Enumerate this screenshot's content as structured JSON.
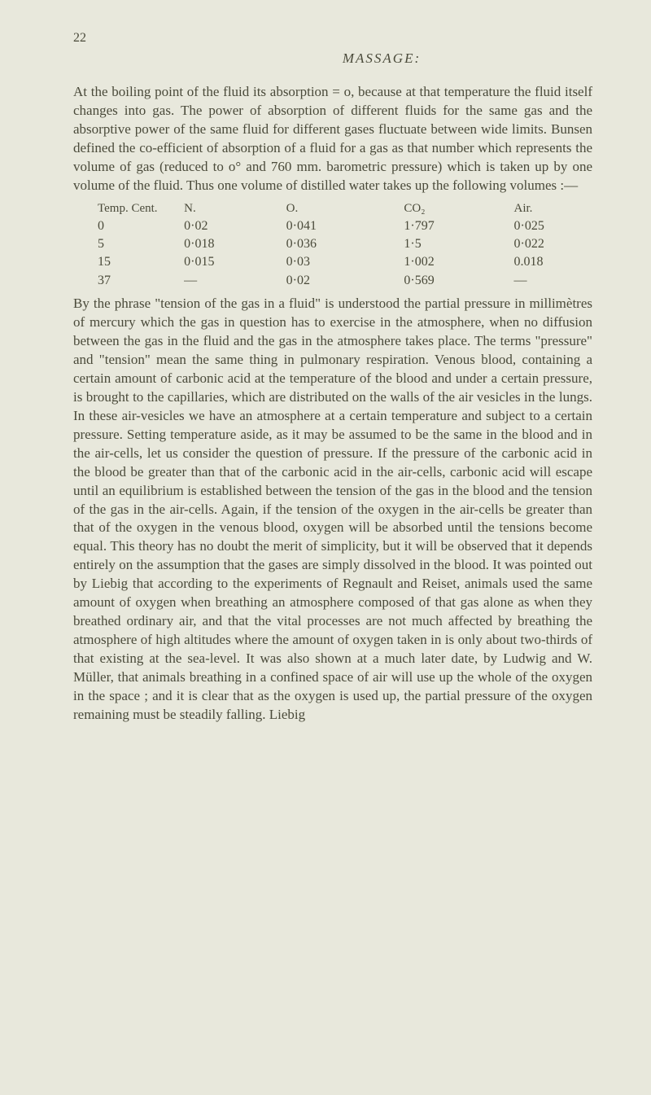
{
  "page_number": "22",
  "chapter_title": "MASSAGE:",
  "para1": "At the boiling point of the fluid its absorption = o, because at that temperature the fluid itself changes into gas. The power of absorption of different fluids for the same gas and the absorptive power of the same fluid for different gases fluctuate between wide limits. Bunsen defined the co-efficient of absorption of a fluid for a gas as that number which represents the volume of gas (reduced to o° and 760 mm. barometric pressure) which is taken up by one volume of the fluid. Thus one volume of distilled water takes up the following volumes :—",
  "table": {
    "headers": {
      "temp": "Temp. Cent.",
      "n": "N.",
      "o": "O.",
      "co2": "CO₂",
      "air": "Air."
    },
    "rows": [
      {
        "temp": "0",
        "n": "0·02",
        "o": "0·041",
        "co2": "1·797",
        "air": "0·025"
      },
      {
        "temp": "5",
        "n": "0·018",
        "o": "0·036",
        "co2": "1·5",
        "air": "0·022"
      },
      {
        "temp": "15",
        "n": "0·015",
        "o": "0·03",
        "co2": "1·002",
        "air": "0.018"
      },
      {
        "temp": "37",
        "n": "—",
        "o": "0·02",
        "co2": "0·569",
        "air": "—"
      }
    ]
  },
  "para2": "By the phrase \"tension of the gas in a fluid\" is understood the partial pressure in millimètres of mercury which the gas in question has to exercise in the atmosphere, when no diffusion between the gas in the fluid and the gas in the atmosphere takes place. The terms \"pressure\" and \"tension\" mean the same thing in pulmonary respiration. Venous blood, containing a certain amount of carbonic acid at the temperature of the blood and under a certain pressure, is brought to the capillaries, which are distributed on the walls of the air vesicles in the lungs. In these air-vesicles we have an atmosphere at a certain temperature and subject to a certain pressure. Setting temperature aside, as it may be assumed to be the same in the blood and in the air-cells, let us consider the question of pressure. If the pressure of the carbonic acid in the blood be greater than that of the carbonic acid in the air-cells, carbonic acid will escape until an equilibrium is established between the tension of the gas in the blood and the tension of the gas in the air-cells. Again, if the tension of the oxygen in the air-cells be greater than that of the oxygen in the venous blood, oxygen will be absorbed until the tensions become equal. This theory has no doubt the merit of simplicity, but it will be observed that it depends entirely on the assumption that the gases are simply dissolved in the blood. It was pointed out by Liebig that according to the experiments of Regnault and Reiset, animals used the same amount of oxygen when breathing an atmosphere composed of that gas alone as when they breathed ordinary air, and that the vital processes are not much affected by breathing the atmosphere of high altitudes where the amount of oxygen taken in is only about two-thirds of that existing at the sea-level. It was also shown at a much later date, by Ludwig and W. Müller, that animals breathing in a confined space of air will use up the whole of the oxygen in the space ; and it is clear that as the oxygen is used up, the partial pressure of the oxygen remaining must be steadily falling. Liebig"
}
